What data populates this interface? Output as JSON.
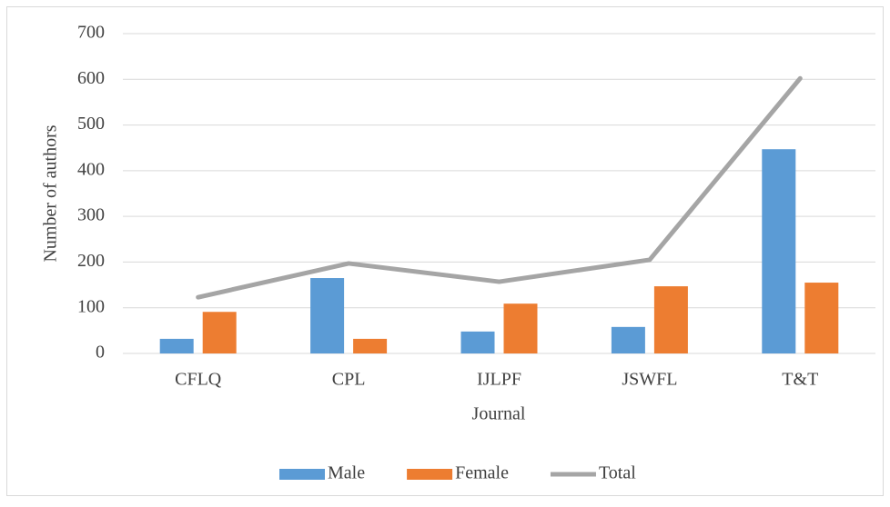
{
  "chart_data": {
    "type": "bar",
    "x_label": "Journal",
    "y_label": "Number of authors",
    "categories": [
      "CFLQ",
      "CPL",
      "IJLPF",
      "JSWFL",
      "T&T"
    ],
    "series": [
      {
        "name": "Male",
        "type": "bar",
        "color": "#5b9bd5",
        "values": [
          32,
          165,
          48,
          58,
          447
        ]
      },
      {
        "name": "Female",
        "type": "bar",
        "color": "#ed7d31",
        "values": [
          91,
          32,
          109,
          147,
          155
        ]
      },
      {
        "name": "Total",
        "type": "line",
        "color": "#a5a5a5",
        "values": [
          123,
          197,
          157,
          205,
          602
        ]
      }
    ],
    "ylim": [
      0,
      700
    ],
    "yticks": [
      0,
      100,
      200,
      300,
      400,
      500,
      600,
      700
    ],
    "grid": true,
    "legend": "bottom"
  }
}
